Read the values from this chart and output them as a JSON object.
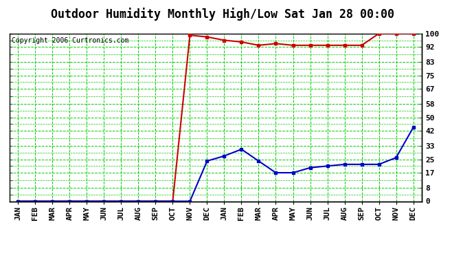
{
  "title": "Outdoor Humidity Monthly High/Low Sat Jan 28 00:00",
  "copyright": "Copyright 2006 Curtronics.com",
  "x_labels": [
    "JAN",
    "FEB",
    "MAR",
    "APR",
    "MAY",
    "JUN",
    "JUL",
    "AUG",
    "SEP",
    "OCT",
    "NOV",
    "DEC",
    "JAN",
    "FEB",
    "MAR",
    "APR",
    "MAY",
    "JUN",
    "JUL",
    "AUG",
    "SEP",
    "OCT",
    "NOV",
    "DEC"
  ],
  "high_values": [
    0,
    0,
    0,
    0,
    0,
    0,
    0,
    0,
    0,
    0,
    99,
    98,
    96,
    95,
    93,
    94,
    93,
    93,
    93,
    93,
    93,
    100,
    100,
    100
  ],
  "low_values": [
    0,
    0,
    0,
    0,
    0,
    0,
    0,
    0,
    0,
    0,
    0,
    24,
    27,
    31,
    24,
    17,
    17,
    20,
    21,
    22,
    22,
    22,
    26,
    44
  ],
  "high_color": "#cc0000",
  "low_color": "#0000cc",
  "background_color": "#ffffff",
  "plot_background": "#ffffff",
  "grid_color": "#00cc00",
  "yticks": [
    0,
    8,
    17,
    25,
    33,
    42,
    50,
    58,
    67,
    75,
    83,
    92,
    100
  ],
  "ylim": [
    0,
    100
  ],
  "marker": "s",
  "marker_size": 3,
  "line_width": 1.5,
  "title_fontsize": 12,
  "tick_fontsize": 8,
  "copy_fontsize": 7
}
